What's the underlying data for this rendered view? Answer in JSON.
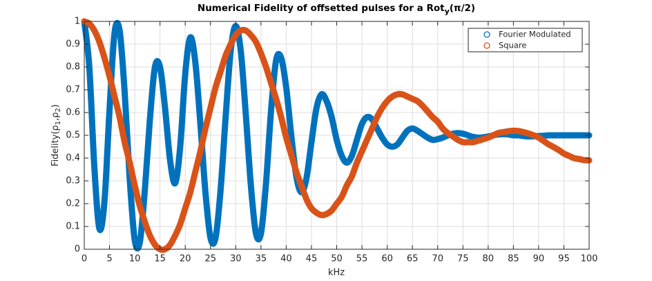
{
  "chart_data": {
    "type": "line",
    "title": [
      "Numerical Fidelity of offsetted pulses for a Rot",
      "y",
      "(π/2)"
    ],
    "xlabel": "kHz",
    "ylabel": [
      "Fidelity(ρ",
      "1",
      ",ρ",
      "2",
      ")"
    ],
    "x": [
      0,
      1,
      2,
      3,
      4,
      5,
      6,
      7,
      8,
      9,
      10,
      11,
      12,
      13,
      14,
      15,
      16,
      17,
      18,
      19,
      20,
      21,
      22,
      23,
      24,
      25,
      26,
      27,
      28,
      29,
      30,
      31,
      32,
      33,
      34,
      35,
      36,
      37,
      38,
      39,
      40,
      41,
      42,
      43,
      44,
      45,
      46,
      47,
      48,
      49,
      50,
      51,
      52,
      53,
      54,
      55,
      56,
      57,
      58,
      59,
      60,
      61,
      62,
      63,
      64,
      65,
      66,
      67,
      68,
      69,
      70,
      71,
      72,
      73,
      74,
      75,
      76,
      77,
      78,
      79,
      80,
      81,
      82,
      83,
      84,
      85,
      86,
      87,
      88,
      89,
      90,
      91,
      92,
      93,
      94,
      95,
      96,
      97,
      98,
      99,
      100
    ],
    "series": [
      {
        "name": "Fourier Modulated",
        "color": "#0072BD",
        "values": [
          1,
          0.8,
          0.36,
          0.09,
          0.21,
          0.61,
          0.95,
          0.96,
          0.69,
          0.31,
          0.04,
          0.03,
          0.26,
          0.57,
          0.8,
          0.8,
          0.62,
          0.39,
          0.29,
          0.45,
          0.77,
          0.93,
          0.82,
          0.55,
          0.25,
          0.05,
          0.05,
          0.26,
          0.58,
          0.87,
          0.98,
          0.87,
          0.59,
          0.28,
          0.07,
          0.07,
          0.29,
          0.61,
          0.83,
          0.84,
          0.71,
          0.5,
          0.32,
          0.25,
          0.31,
          0.47,
          0.62,
          0.68,
          0.65,
          0.58,
          0.48,
          0.41,
          0.38,
          0.41,
          0.48,
          0.55,
          0.58,
          0.57,
          0.53,
          0.49,
          0.46,
          0.45,
          0.46,
          0.49,
          0.52,
          0.53,
          0.52,
          0.505,
          0.49,
          0.48,
          0.483,
          0.49,
          0.5,
          0.507,
          0.51,
          0.507,
          0.5,
          0.493,
          0.49,
          0.491,
          0.495,
          0.5,
          0.504,
          0.505,
          0.504,
          0.5,
          0.5,
          0.497,
          0.495,
          0.496,
          0.497,
          0.498,
          0.5,
          0.5,
          0.5,
          0.5,
          0.5,
          0.5,
          0.5,
          0.5,
          0.5
        ]
      },
      {
        "name": "Square",
        "color": "#D95319",
        "values": [
          1,
          0.99,
          0.96,
          0.91,
          0.84,
          0.76,
          0.67,
          0.58,
          0.47,
          0.38,
          0.28,
          0.19,
          0.12,
          0.06,
          0.02,
          0,
          0,
          0.02,
          0.06,
          0.11,
          0.18,
          0.25,
          0.34,
          0.43,
          0.53,
          0.62,
          0.71,
          0.78,
          0.85,
          0.9,
          0.94,
          0.96,
          0.96,
          0.94,
          0.91,
          0.86,
          0.8,
          0.73,
          0.66,
          0.58,
          0.49,
          0.415,
          0.34,
          0.28,
          0.22,
          0.18,
          0.16,
          0.15,
          0.155,
          0.17,
          0.2,
          0.23,
          0.28,
          0.32,
          0.38,
          0.43,
          0.48,
          0.53,
          0.58,
          0.62,
          0.65,
          0.67,
          0.68,
          0.68,
          0.67,
          0.66,
          0.65,
          0.63,
          0.605,
          0.58,
          0.56,
          0.53,
          0.51,
          0.495,
          0.48,
          0.47,
          0.47,
          0.47,
          0.476,
          0.483,
          0.49,
          0.5,
          0.51,
          0.514,
          0.518,
          0.52,
          0.519,
          0.514,
          0.508,
          0.5,
          0.49,
          0.475,
          0.46,
          0.448,
          0.435,
          0.42,
          0.41,
          0.4,
          0.396,
          0.391,
          0.39
        ]
      }
    ],
    "xlim": [
      0,
      100
    ],
    "ylim": [
      0,
      1
    ],
    "xticks": [
      0,
      5,
      10,
      15,
      20,
      25,
      30,
      35,
      40,
      45,
      50,
      55,
      60,
      65,
      70,
      75,
      80,
      85,
      90,
      95,
      100
    ],
    "yticks": [
      0,
      0.1,
      0.2,
      0.3,
      0.4,
      0.5,
      0.6,
      0.7,
      0.8,
      0.9,
      1
    ],
    "grid": true,
    "legend": "northeast"
  }
}
